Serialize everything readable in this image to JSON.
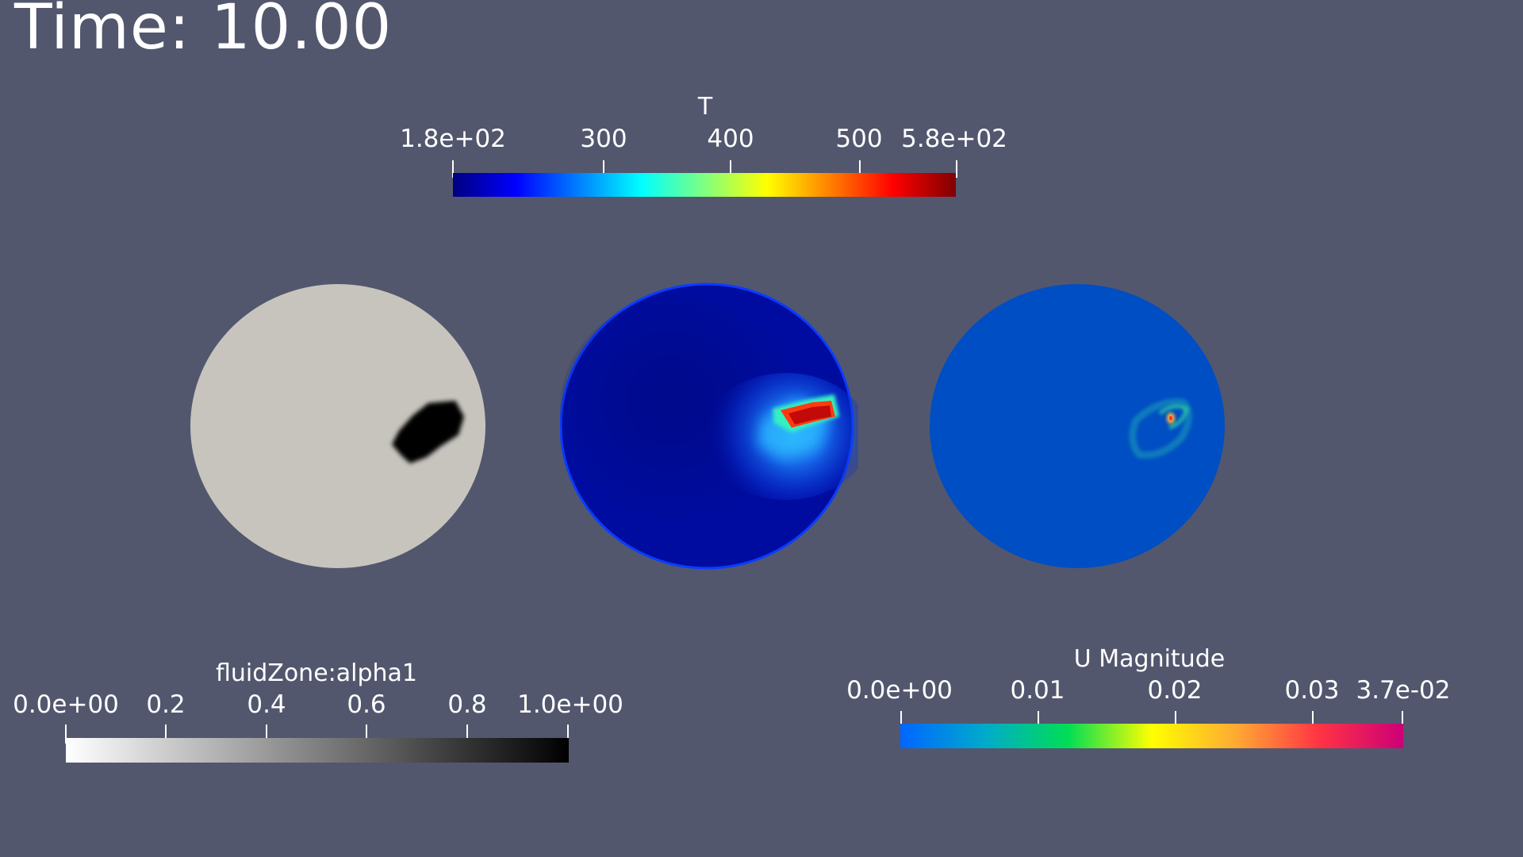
{
  "time_label": "Time: 10.00",
  "views": [
    {
      "field": "fluidZone:alpha1"
    },
    {
      "field": "T"
    },
    {
      "field": "U Magnitude"
    }
  ],
  "colorbars": {
    "temperature": {
      "title": "T",
      "range": [
        180,
        580
      ],
      "ticks": [
        "1.8e+02",
        "300",
        "400",
        "500",
        "5.8e+02"
      ],
      "tick_values": [
        180,
        300,
        400,
        500,
        580
      ],
      "colormap": [
        "#000080",
        "#0000ff",
        "#0080ff",
        "#00ffff",
        "#80ff80",
        "#ffff00",
        "#ff8000",
        "#ff0000",
        "#800000"
      ]
    },
    "alpha": {
      "title": "fluidZone:alpha1",
      "range": [
        0,
        1
      ],
      "ticks": [
        "0.0e+00",
        "0.2",
        "0.4",
        "0.6",
        "0.8",
        "1.0e+00"
      ],
      "tick_values": [
        0,
        0.2,
        0.4,
        0.6,
        0.8,
        1.0
      ],
      "colormap": [
        "#ffffff",
        "#000000"
      ]
    },
    "velocity": {
      "title": "U Magnitude",
      "range": [
        0,
        0.037
      ],
      "ticks": [
        "0.0e+00",
        "0.01",
        "0.02",
        "0.03",
        "3.7e-02"
      ],
      "tick_values": [
        0,
        0.01,
        0.02,
        0.03,
        0.037
      ],
      "colormap": [
        "#0066ff",
        "#00aacc",
        "#00dd55",
        "#ffff00",
        "#ffaa33",
        "#ff3344",
        "#cc0077"
      ]
    }
  },
  "colors": {
    "background": "#52576e",
    "alpha_disc": "#c7c4be",
    "alpha_blob": "#050505",
    "temp_disc": "#000ca0",
    "velocity_disc": "#004ec3"
  }
}
